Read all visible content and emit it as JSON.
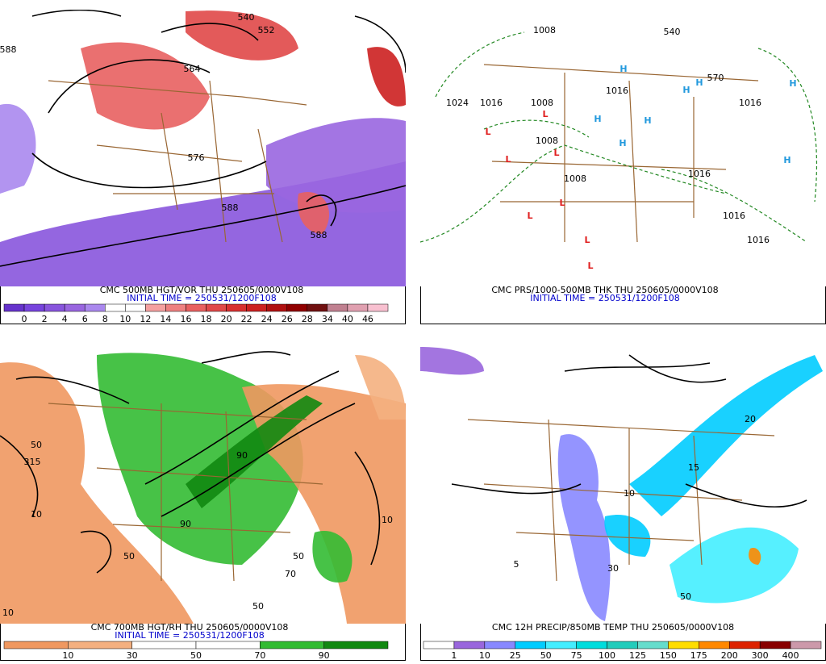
{
  "panels": [
    {
      "caption": "CMC 500MB HGT/VOR THU 250605/0000V108",
      "initial_time": "INITIAL TIME = 250531/1200F108",
      "colorbar": {
        "colors": [
          "#6633cc",
          "#7744dd",
          "#8855dd",
          "#9966e0",
          "#aa88ee",
          "#ffffff",
          "#ffffff",
          "#f4a0a0",
          "#ee8080",
          "#e86060",
          "#e04848",
          "#d83030",
          "#cc2020",
          "#b01010",
          "#900000",
          "#701010",
          "#c08090",
          "#e0a0b0",
          "#f8c0d0"
        ],
        "labels": [
          0,
          2,
          4,
          6,
          8,
          10,
          12,
          14,
          16,
          18,
          20,
          22,
          24,
          26,
          28,
          34,
          40,
          46
        ]
      },
      "labels": [
        "540",
        "552",
        "564",
        "576",
        "588",
        "588",
        "588"
      ]
    },
    {
      "caption": "CMC PRS/1000-500MB THK THU 250605/0000V108",
      "initial_time": "INITIAL TIME = 250531/1200F108",
      "labels": [
        "1008",
        "1024",
        "1016",
        "1008",
        "1016",
        "1008",
        "1008",
        "1016",
        "1016",
        "1016",
        "1016",
        "540",
        "570"
      ],
      "highs": [
        "H",
        "H",
        "H",
        "H",
        "H",
        "H",
        "H",
        "H"
      ],
      "lows": [
        "L",
        "L",
        "L",
        "L",
        "L",
        "L",
        "L",
        "L"
      ]
    },
    {
      "caption": "CMC 700MB HGT/RH THU 250605/0000V108",
      "initial_time": "INITIAL TIME = 250531/1200F108",
      "colorbar": {
        "colors": [
          "#f09860",
          "#f4b080",
          "#ffffff",
          "#ffffff",
          "#33bb33",
          "#118811"
        ],
        "labels": [
          10,
          30,
          50,
          70,
          90
        ]
      },
      "labels": [
        "50",
        "10",
        "50",
        "90",
        "50",
        "10",
        "50",
        "70",
        "90",
        "10",
        "315"
      ]
    },
    {
      "caption": "CMC 12H PRECIP/850MB TEMP THU 250605/0000V108",
      "colorbar": {
        "colors": [
          "#ffffff",
          "#9966dd",
          "#8888ff",
          "#00ccff",
          "#44eeff",
          "#00dddd",
          "#22ccbb",
          "#66ddcc",
          "#ffdd00",
          "#ff8800",
          "#dd2200",
          "#880000",
          "#cc99aa"
        ],
        "labels": [
          1,
          10,
          25,
          50,
          75,
          100,
          125,
          150,
          175,
          200,
          300,
          400
        ]
      },
      "labels": [
        "10",
        "15",
        "20",
        "5",
        "30",
        "50"
      ]
    }
  ]
}
